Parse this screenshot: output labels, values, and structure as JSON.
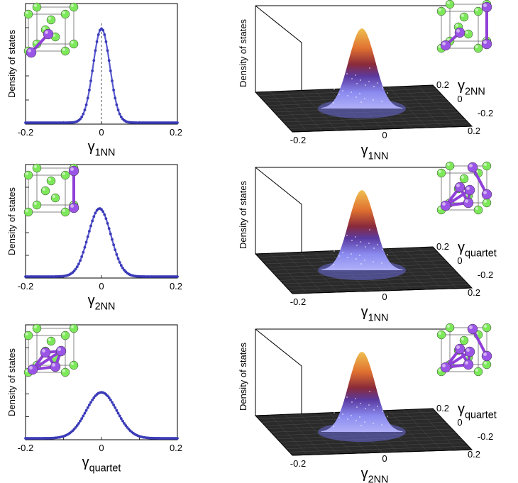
{
  "axis_symbols": {
    "gamma": "γ",
    "density_label": "Density of states"
  },
  "chart_data": [
    {
      "type": "line",
      "panel": "left-1",
      "xlabel_sub": "1NN",
      "ylabel": "Density of states",
      "xlim": [
        -0.2,
        0.2
      ],
      "xticks": [
        "-0.2",
        "0",
        "0.2"
      ],
      "peak_center": 0.0,
      "peak_sigma": 0.022,
      "peak_height": 0.78,
      "center_dashed_line": true,
      "x": [
        -0.2,
        -0.15,
        -0.1,
        -0.08,
        -0.06,
        -0.05,
        -0.04,
        -0.03,
        -0.02,
        -0.01,
        0,
        0.01,
        0.02,
        0.03,
        0.04,
        0.05,
        0.06,
        0.08,
        0.1,
        0.15,
        0.2
      ],
      "series": [
        {
          "name": "1NN",
          "color": "#5a5bd0"
        }
      ],
      "inset": "1nn"
    },
    {
      "type": "line",
      "panel": "left-2",
      "xlabel_sub": "2NN",
      "ylabel": "Density of states",
      "xlim": [
        -0.2,
        0.2
      ],
      "xticks": [
        "-0.2",
        "0",
        "0.2"
      ],
      "peak_center": -0.005,
      "peak_sigma": 0.03,
      "peak_height": 0.6,
      "center_dashed_line": false,
      "series": [
        {
          "name": "2NN",
          "color": "#5a5bd0"
        }
      ],
      "inset": "2nn"
    },
    {
      "type": "line",
      "panel": "left-3",
      "xlabel_sub": "quartet",
      "ylabel": "Density of states",
      "xlim": [
        -0.2,
        0.2
      ],
      "xticks": [
        "-0.2",
        "0",
        "0.2"
      ],
      "peak_center": 0.0,
      "peak_sigma": 0.04,
      "peak_height": 0.4,
      "center_dashed_line": false,
      "series": [
        {
          "name": "quartet",
          "color": "#5a5bd0"
        }
      ],
      "inset": "quartet"
    },
    {
      "type": "heatmap",
      "panel": "right-1",
      "style": "3d-surface",
      "xlabel_sub": "1NN",
      "ylabel_sub": "2NN",
      "zlabel": "Density of states",
      "xticks": [
        "-0.2",
        "0"
      ],
      "yticks": [
        "0.2",
        "0",
        "-0.2"
      ],
      "corner_tick": "0.2",
      "inset": "1nn-2nn"
    },
    {
      "type": "heatmap",
      "panel": "right-2",
      "style": "3d-surface",
      "xlabel_sub": "1NN",
      "ylabel_sub": "quartet",
      "zlabel": "Density of states",
      "xticks": [
        "-0.2",
        "0"
      ],
      "yticks": [
        "0.2",
        "0",
        "-0.2"
      ],
      "corner_tick": "0.2",
      "inset": "1nn-quartet"
    },
    {
      "type": "heatmap",
      "panel": "right-3",
      "style": "3d-surface",
      "xlabel_sub": "2NN",
      "ylabel_sub": "quartet",
      "zlabel": "Density of states",
      "xticks": [
        "-0.2",
        "0"
      ],
      "yticks": [
        "0.2",
        "0",
        "-0.2"
      ],
      "corner_tick": "0.2",
      "inset": "2nn-quartet"
    }
  ],
  "colors": {
    "curve": "#5a5bd0",
    "atom_green": "#7de85a",
    "atom_purple": "#9b55e6",
    "bond_purple": "#9040d8",
    "floor": "#2a2a2a"
  }
}
